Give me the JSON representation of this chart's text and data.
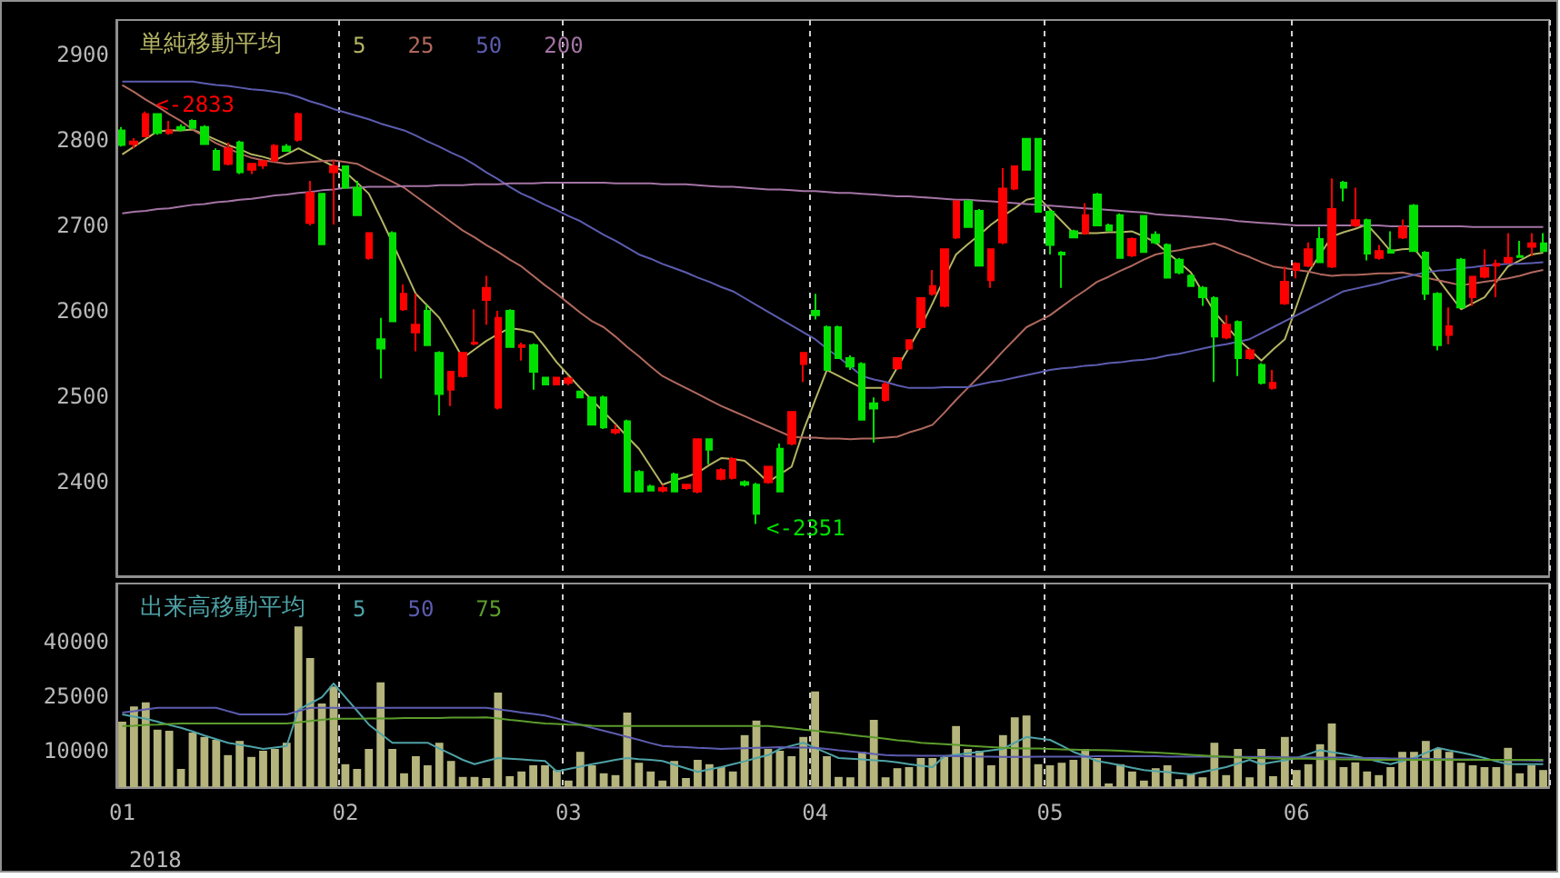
{
  "chart_data": [
    {
      "type": "candlestick",
      "legend_title": "単純移動平均",
      "legend": "top left",
      "grid": "x",
      "tick_labels": "y",
      "ylim": [
        2290,
        2940
      ],
      "yticks": [
        2400,
        2500,
        2600,
        2700,
        2800,
        2900
      ],
      "annotations": [
        "<-2833",
        "<-2351"
      ],
      "categories": [
        "01",
        null,
        null,
        null,
        null,
        null,
        null,
        null,
        null,
        null,
        null,
        null,
        null,
        null,
        null,
        null,
        null,
        null,
        null,
        "02",
        null,
        null,
        null,
        null,
        null,
        null,
        null,
        null,
        null,
        null,
        null,
        null,
        null,
        null,
        null,
        null,
        null,
        null,
        "03",
        null,
        null,
        null,
        null,
        null,
        null,
        null,
        null,
        null,
        null,
        null,
        null,
        null,
        null,
        null,
        null,
        null,
        null,
        null,
        null,
        "04",
        null,
        null,
        null,
        null,
        null,
        null,
        null,
        null,
        null,
        null,
        null,
        null,
        null,
        null,
        null,
        null,
        null,
        null,
        null,
        "05",
        null,
        null,
        null,
        null,
        null,
        null,
        null,
        null,
        null,
        null,
        null,
        null,
        null,
        null,
        null,
        null,
        null,
        null,
        null,
        null,
        "06",
        null,
        null,
        null,
        null,
        null,
        null,
        null,
        null,
        null,
        null,
        null,
        null,
        null,
        null,
        null,
        null,
        null,
        null,
        null,
        null,
        null
      ],
      "series": [
        {
          "type": "line",
          "name": "5",
          "color": "#b4b464",
          "values": [
            2783,
            2792,
            2801,
            2810,
            2811,
            2811,
            2812,
            2806,
            2800,
            2794,
            2789,
            2783,
            2780,
            2776,
            2783,
            2790,
            2783,
            2776,
            2769,
            2762,
            2750,
            2737,
            2709,
            2680,
            2650,
            2620,
            2606,
            2592,
            2569,
            2545,
            2555,
            2565,
            2573,
            2580,
            2578,
            2575,
            2558,
            2540,
            2525,
            2510,
            2496,
            2482,
            2468,
            2453,
            2439,
            2418,
            2397,
            2402,
            2406,
            2411,
            2420,
            2428,
            2427,
            2425,
            2413,
            2400,
            2409,
            2418,
            2460,
            2496,
            2531,
            2524,
            2517,
            2510,
            2510,
            2510,
            2534,
            2557,
            2581,
            2609,
            2638,
            2666,
            2678,
            2689,
            2701,
            2711,
            2720,
            2730,
            2733,
            2719,
            2705,
            2691,
            2691,
            2691,
            2692,
            2692,
            2693,
            2687,
            2680,
            2668,
            2657,
            2645,
            2622,
            2599,
            2583,
            2567,
            2555,
            2542,
            2555,
            2567,
            2606,
            2645,
            2666,
            2687,
            2692,
            2696,
            2701,
            2686,
            2670,
            2672,
            2673,
            2656,
            2638,
            2620,
            2602,
            2609,
            2616,
            2634,
            2652,
            2659,
            2666,
            2668
          ]
        },
        {
          "type": "line",
          "name": "25",
          "color": "#b0685e",
          "values": [
            2864,
            2856,
            2847,
            2839,
            2830,
            2822,
            2812,
            2804,
            2796,
            2790,
            2784,
            2779,
            2776,
            2774,
            2772,
            2773,
            2774,
            2775,
            2776,
            2774,
            2772,
            2765,
            2758,
            2751,
            2744,
            2734,
            2724,
            2714,
            2704,
            2694,
            2686,
            2677,
            2669,
            2660,
            2652,
            2641,
            2630,
            2620,
            2609,
            2598,
            2588,
            2581,
            2570,
            2558,
            2547,
            2535,
            2524,
            2517,
            2510,
            2503,
            2496,
            2489,
            2483,
            2477,
            2471,
            2465,
            2459,
            2453,
            2452,
            2452,
            2451,
            2451,
            2450,
            2451,
            2451,
            2452,
            2453,
            2458,
            2462,
            2467,
            2481,
            2496,
            2510,
            2524,
            2538,
            2553,
            2567,
            2581,
            2588,
            2595,
            2605,
            2615,
            2624,
            2634,
            2640,
            2647,
            2653,
            2660,
            2666,
            2669,
            2671,
            2674,
            2676,
            2679,
            2674,
            2668,
            2663,
            2657,
            2652,
            2650,
            2648,
            2646,
            2643,
            2641,
            2642,
            2642,
            2643,
            2644,
            2644,
            2645,
            2642,
            2639,
            2636,
            2633,
            2630,
            2632,
            2634,
            2636,
            2638,
            2641,
            2645,
            2648
          ]
        },
        {
          "type": "line",
          "name": "50",
          "color": "#5c5cb0",
          "values": [
            2868,
            2868,
            2868,
            2868,
            2868,
            2868,
            2868,
            2866,
            2864,
            2863,
            2861,
            2859,
            2858,
            2856,
            2854,
            2850,
            2845,
            2841,
            2836,
            2832,
            2828,
            2824,
            2819,
            2815,
            2811,
            2805,
            2798,
            2792,
            2785,
            2779,
            2771,
            2762,
            2754,
            2745,
            2737,
            2731,
            2724,
            2718,
            2711,
            2705,
            2697,
            2689,
            2682,
            2674,
            2666,
            2661,
            2655,
            2650,
            2645,
            2639,
            2634,
            2628,
            2623,
            2615,
            2607,
            2599,
            2591,
            2583,
            2575,
            2567,
            2556,
            2546,
            2535,
            2524,
            2520,
            2517,
            2513,
            2510,
            2510,
            2510,
            2511,
            2511,
            2511,
            2514,
            2517,
            2519,
            2522,
            2525,
            2528,
            2531,
            2533,
            2534,
            2536,
            2537,
            2539,
            2540,
            2542,
            2543,
            2545,
            2548,
            2550,
            2553,
            2556,
            2559,
            2561,
            2564,
            2567,
            2574,
            2581,
            2588,
            2595,
            2602,
            2609,
            2616,
            2623,
            2626,
            2629,
            2632,
            2636,
            2639,
            2642,
            2645,
            2647,
            2648,
            2650,
            2651,
            2653,
            2654,
            2655,
            2655,
            2656,
            2657
          ]
        },
        {
          "type": "line",
          "name": "200",
          "color": "#a474a4",
          "values": [
            2714,
            2716,
            2717,
            2719,
            2720,
            2722,
            2724,
            2725,
            2727,
            2728,
            2730,
            2731,
            2733,
            2735,
            2736,
            2738,
            2739,
            2741,
            2742,
            2744,
            2744,
            2745,
            2745,
            2745,
            2746,
            2746,
            2746,
            2747,
            2747,
            2747,
            2748,
            2748,
            2748,
            2749,
            2749,
            2749,
            2750,
            2750,
            2750,
            2750,
            2750,
            2750,
            2749,
            2749,
            2749,
            2749,
            2748,
            2748,
            2748,
            2747,
            2746,
            2745,
            2745,
            2744,
            2743,
            2742,
            2742,
            2741,
            2740,
            2740,
            2739,
            2738,
            2738,
            2737,
            2736,
            2735,
            2734,
            2734,
            2733,
            2732,
            2731,
            2730,
            2730,
            2729,
            2728,
            2727,
            2726,
            2725,
            2724,
            2723,
            2722,
            2721,
            2720,
            2719,
            2718,
            2717,
            2716,
            2715,
            2713,
            2712,
            2711,
            2710,
            2709,
            2708,
            2707,
            2705,
            2704,
            2703,
            2702,
            2701,
            2700,
            2700,
            2700,
            2700,
            2700,
            2700,
            2700,
            2700,
            2699,
            2699,
            2699,
            2699,
            2699,
            2699,
            2699,
            2698,
            2698,
            2698,
            2698,
            2698,
            2698,
            2698
          ]
        },
        {
          "ohlc": [
            [
              2811,
              2815,
              2792,
              2794
            ],
            [
              2795,
              2802,
              2790,
              2798
            ],
            [
              2804,
              2833,
              2803,
              2830
            ],
            [
              2830,
              2831,
              2806,
              2808
            ],
            [
              2808,
              2822,
              2806,
              2811
            ],
            [
              2815,
              2818,
              2810,
              2812
            ],
            [
              2822,
              2824,
              2813,
              2814
            ],
            [
              2815,
              2817,
              2794,
              2795
            ],
            [
              2787,
              2790,
              2764,
              2765
            ],
            [
              2772,
              2797,
              2770,
              2790
            ],
            [
              2797,
              2799,
              2760,
              2762
            ],
            [
              2765,
              2772,
              2760,
              2772
            ],
            [
              2770,
              2776,
              2766,
              2775
            ],
            [
              2776,
              2795,
              2774,
              2793
            ],
            [
              2792,
              2795,
              2786,
              2787
            ],
            [
              2800,
              2832,
              2798,
              2830
            ],
            [
              2703,
              2752,
              2700,
              2738
            ],
            [
              2737,
              2738,
              2678,
              2678
            ],
            [
              2762,
              2776,
              2701,
              2769
            ],
            [
              2769,
              2770,
              2744,
              2744
            ],
            [
              2744,
              2752,
              2712,
              2712
            ],
            [
              2662,
              2691,
              2660,
              2691
            ],
            [
              2567,
              2592,
              2521,
              2556
            ],
            [
              2691,
              2693,
              2588,
              2588
            ],
            [
              2602,
              2631,
              2600,
              2620
            ],
            [
              2575,
              2620,
              2553,
              2584
            ],
            [
              2600,
              2607,
              2560,
              2560
            ],
            [
              2551,
              2553,
              2478,
              2503
            ],
            [
              2508,
              2529,
              2489,
              2529
            ],
            [
              2524,
              2551,
              2522,
              2551
            ],
            [
              2562,
              2602,
              2560,
              2563
            ],
            [
              2613,
              2641,
              2584,
              2627
            ],
            [
              2487,
              2600,
              2485,
              2592
            ],
            [
              2600,
              2602,
              2558,
              2558
            ],
            [
              2558,
              2563,
              2542,
              2560
            ],
            [
              2560,
              2562,
              2508,
              2529
            ],
            [
              2522,
              2523,
              2514,
              2514
            ],
            [
              2514,
              2522,
              2513,
              2522
            ],
            [
              2516,
              2524,
              2513,
              2521
            ],
            [
              2506,
              2507,
              2499,
              2499
            ],
            [
              2499,
              2500,
              2467,
              2467
            ],
            [
              2499,
              2501,
              2462,
              2464
            ],
            [
              2458,
              2467,
              2456,
              2461
            ],
            [
              2471,
              2473,
              2389,
              2389
            ],
            [
              2412,
              2414,
              2388,
              2389
            ],
            [
              2395,
              2397,
              2389,
              2390
            ],
            [
              2390,
              2397,
              2388,
              2393
            ],
            [
              2409,
              2411,
              2389,
              2389
            ],
            [
              2393,
              2397,
              2391,
              2397
            ],
            [
              2389,
              2451,
              2387,
              2450
            ],
            [
              2450,
              2451,
              2421,
              2438
            ],
            [
              2404,
              2416,
              2402,
              2414
            ],
            [
              2405,
              2429,
              2403,
              2427
            ],
            [
              2400,
              2402,
              2395,
              2397
            ],
            [
              2397,
              2399,
              2351,
              2363
            ],
            [
              2400,
              2418,
              2398,
              2418
            ],
            [
              2439,
              2445,
              2389,
              2389
            ],
            [
              2445,
              2482,
              2443,
              2482
            ],
            [
              2538,
              2551,
              2517,
              2551
            ],
            [
              2600,
              2620,
              2590,
              2595
            ],
            [
              2581,
              2583,
              2531,
              2531
            ],
            [
              2581,
              2583,
              2545,
              2545
            ],
            [
              2545,
              2548,
              2531,
              2535
            ],
            [
              2538,
              2540,
              2473,
              2473
            ],
            [
              2492,
              2499,
              2446,
              2486
            ],
            [
              2496,
              2517,
              2494,
              2514
            ],
            [
              2533,
              2545,
              2531,
              2545
            ],
            [
              2556,
              2567,
              2554,
              2566
            ],
            [
              2581,
              2615,
              2579,
              2615
            ],
            [
              2620,
              2648,
              2618,
              2629
            ],
            [
              2606,
              2672,
              2604,
              2672
            ],
            [
              2686,
              2728,
              2684,
              2728
            ],
            [
              2728,
              2730,
              2698,
              2698
            ],
            [
              2717,
              2719,
              2653,
              2653
            ],
            [
              2636,
              2672,
              2627,
              2672
            ],
            [
              2680,
              2767,
              2678,
              2743
            ],
            [
              2743,
              2769,
              2741,
              2769
            ],
            [
              2801,
              2802,
              2765,
              2765
            ],
            [
              2801,
              2802,
              2716,
              2716
            ],
            [
              2716,
              2718,
              2666,
              2677
            ],
            [
              2668,
              2670,
              2627,
              2666
            ],
            [
              2693,
              2695,
              2685,
              2686
            ],
            [
              2691,
              2726,
              2689,
              2712
            ],
            [
              2736,
              2738,
              2700,
              2700
            ],
            [
              2700,
              2702,
              2693,
              2694
            ],
            [
              2712,
              2714,
              2662,
              2662
            ],
            [
              2665,
              2686,
              2663,
              2684
            ],
            [
              2711,
              2712,
              2669,
              2669
            ],
            [
              2689,
              2693,
              2678,
              2680
            ],
            [
              2677,
              2679,
              2639,
              2639
            ],
            [
              2660,
              2662,
              2643,
              2645
            ],
            [
              2641,
              2643,
              2629,
              2629
            ],
            [
              2627,
              2629,
              2606,
              2616
            ],
            [
              2615,
              2617,
              2517,
              2570
            ],
            [
              2569,
              2595,
              2567,
              2584
            ],
            [
              2587,
              2589,
              2524,
              2545
            ],
            [
              2545,
              2556,
              2543,
              2554
            ],
            [
              2537,
              2539,
              2514,
              2516
            ],
            [
              2510,
              2531,
              2508,
              2516
            ],
            [
              2609,
              2652,
              2607,
              2634
            ],
            [
              2648,
              2657,
              2638,
              2655
            ],
            [
              2653,
              2680,
              2651,
              2672
            ],
            [
              2684,
              2698,
              2657,
              2657
            ],
            [
              2652,
              2755,
              2650,
              2719
            ],
            [
              2750,
              2752,
              2728,
              2744
            ],
            [
              2700,
              2744,
              2698,
              2706
            ],
            [
              2706,
              2708,
              2659,
              2667
            ],
            [
              2662,
              2677,
              2660,
              2670
            ],
            [
              2671,
              2693,
              2667,
              2668
            ],
            [
              2686,
              2707,
              2684,
              2698
            ],
            [
              2723,
              2725,
              2670,
              2670
            ],
            [
              2668,
              2670,
              2613,
              2620
            ],
            [
              2620,
              2622,
              2554,
              2560
            ],
            [
              2572,
              2604,
              2561,
              2582
            ],
            [
              2660,
              2662,
              2604,
              2604
            ],
            [
              2616,
              2640,
              2606,
              2640
            ],
            [
              2640,
              2672,
              2638,
              2650
            ],
            [
              2653,
              2660,
              2616,
              2655
            ],
            [
              2657,
              2691,
              2655,
              2662
            ],
            [
              2664,
              2682,
              2662,
              2663
            ],
            [
              2675,
              2691,
              2664,
              2679
            ],
            [
              2679,
              2691,
              2670,
              2670
            ]
          ],
          "colors": [
            "#00e000",
            "#ff0000",
            "#ff0000",
            "#00e000",
            "#ff0000",
            "#00e000",
            "#00e000",
            "#00e000",
            "#00e000",
            "#ff0000",
            "#00e000",
            "#ff0000",
            "#ff0000",
            "#ff0000",
            "#00e000",
            "#ff0000",
            "#ff0000",
            "#00e000",
            "#ff0000",
            "#00e000",
            "#00e000",
            "#ff0000",
            "#00e000",
            "#00e000",
            "#ff0000",
            "#ff0000",
            "#00e000",
            "#00e000",
            "#ff0000",
            "#ff0000",
            "#ff0000",
            "#ff0000",
            "#ff0000",
            "#00e000",
            "#ff0000",
            "#00e000",
            "#00e000",
            "#ff0000",
            "#ff0000",
            "#00e000",
            "#00e000",
            "#00e000",
            "#ff0000",
            "#00e000",
            "#00e000",
            "#00e000",
            "#ff0000",
            "#00e000",
            "#ff0000",
            "#ff0000",
            "#00e000",
            "#ff0000",
            "#ff0000",
            "#00e000",
            "#00e000",
            "#ff0000",
            "#00e000",
            "#ff0000",
            "#ff0000",
            "#00e000",
            "#00e000",
            "#00e000",
            "#00e000",
            "#00e000",
            "#00e000",
            "#ff0000",
            "#ff0000",
            "#ff0000",
            "#ff0000",
            "#ff0000",
            "#ff0000",
            "#ff0000",
            "#00e000",
            "#00e000",
            "#ff0000",
            "#ff0000",
            "#ff0000",
            "#00e000",
            "#00e000",
            "#00e000",
            "#00e000",
            "#00e000",
            "#ff0000",
            "#00e000",
            "#00e000",
            "#00e000",
            "#ff0000",
            "#00e000",
            "#00e000",
            "#00e000",
            "#00e000",
            "#00e000",
            "#00e000",
            "#00e000",
            "#ff0000",
            "#00e000",
            "#ff0000",
            "#00e000",
            "#ff0000",
            "#ff0000",
            "#ff0000",
            "#ff0000",
            "#00e000",
            "#ff0000",
            "#00e000",
            "#ff0000",
            "#00e000",
            "#ff0000",
            "#00e000",
            "#ff0000",
            "#00e000",
            "#00e000",
            "#00e000",
            "#ff0000",
            "#00e000",
            "#ff0000",
            "#ff0000",
            "#ff0000",
            "#ff0000",
            "#00e000",
            "#ff0000",
            "#00e000"
          ]
        }
      ]
    },
    {
      "type": "bar",
      "legend_title": "出来高移動平均",
      "legend": "top left",
      "grid": "x",
      "xlabel": "2018",
      "ylim": [
        0,
        56000
      ],
      "yticks": [
        10000,
        25000,
        40000
      ],
      "categories": [
        "01",
        null,
        null,
        null,
        null,
        null,
        null,
        null,
        null,
        null,
        null,
        null,
        null,
        null,
        null,
        null,
        null,
        null,
        null,
        "02",
        null,
        null,
        null,
        null,
        null,
        null,
        null,
        null,
        null,
        null,
        null,
        null,
        null,
        null,
        null,
        null,
        null,
        null,
        "03",
        null,
        null,
        null,
        null,
        null,
        null,
        null,
        null,
        null,
        null,
        null,
        null,
        null,
        null,
        null,
        null,
        null,
        null,
        null,
        null,
        "04",
        null,
        null,
        null,
        null,
        null,
        null,
        null,
        null,
        null,
        null,
        null,
        null,
        null,
        null,
        null,
        null,
        null,
        null,
        null,
        "05",
        null,
        null,
        null,
        null,
        null,
        null,
        null,
        null,
        null,
        null,
        null,
        null,
        null,
        null,
        null,
        null,
        null,
        null,
        null,
        null,
        "06",
        null,
        null,
        null,
        null,
        null,
        null,
        null,
        null,
        null,
        null,
        null,
        null,
        null,
        null,
        null,
        null,
        null,
        null,
        null,
        null,
        null
      ],
      "series": [
        {
          "color": "#b4b47c",
          "values": [
            18000,
            22200,
            23300,
            15800,
            15500,
            5000,
            15000,
            13800,
            13000,
            8800,
            12700,
            8300,
            10000,
            10500,
            12200,
            44200,
            35500,
            23000,
            27700,
            6300,
            5000,
            10500,
            28800,
            10500,
            3800,
            8500,
            6000,
            12200,
            7200,
            2800,
            2800,
            2500,
            26000,
            3000,
            4300,
            6000,
            6000,
            4700,
            1800,
            9700,
            6000,
            3800,
            3300,
            20500,
            6700,
            4300,
            1800,
            7200,
            2500,
            7500,
            6300,
            5500,
            4300,
            14300,
            18300,
            10500,
            10000,
            8500,
            13800,
            26300,
            8500,
            2800,
            2700,
            9700,
            18500,
            2700,
            5200,
            5500,
            8000,
            8000,
            8300,
            16800,
            10500,
            10000,
            6000,
            14300,
            19200,
            19700,
            6300,
            6000,
            6700,
            7500,
            10500,
            8000,
            1000,
            6300,
            4300,
            1800,
            5200,
            6000,
            2200,
            3500,
            2700,
            12200,
            3300,
            10500,
            2700,
            10500,
            3000,
            13800,
            4700,
            6300,
            11800,
            17500,
            5500,
            6800,
            4300,
            3300,
            5500,
            9700,
            9700,
            12700,
            10500,
            9700,
            6700,
            6000,
            5500,
            5500,
            10800,
            3800,
            6000,
            4700
          ]
        },
        {
          "type": "line",
          "name": "5",
          "color": "#4ea2a6",
          "values": [
            20000,
            19400,
            18800,
            18000,
            17100,
            16300,
            15300,
            14200,
            13200,
            12200,
            11600,
            11100,
            10500,
            10900,
            11300,
            21300,
            23000,
            24700,
            28500,
            24700,
            21000,
            17200,
            14700,
            12200,
            12200,
            12200,
            12200,
            10600,
            9100,
            7500,
            6300,
            7200,
            8000,
            7800,
            7600,
            7400,
            7200,
            4300,
            5000,
            5600,
            6300,
            6900,
            7500,
            8000,
            7700,
            7500,
            7200,
            6200,
            5200,
            4200,
            4900,
            5500,
            6300,
            7100,
            8000,
            8800,
            10500,
            11400,
            12200,
            10800,
            9400,
            8000,
            7800,
            7600,
            7400,
            7200,
            6800,
            6300,
            5900,
            5500,
            8500,
            8900,
            9300,
            9700,
            10100,
            10500,
            12200,
            13800,
            13400,
            13000,
            11400,
            9700,
            8500,
            7200,
            6600,
            6000,
            5300,
            4700,
            4400,
            4100,
            3800,
            3500,
            4200,
            4800,
            5500,
            6500,
            7500,
            6300,
            6900,
            7400,
            8000,
            9100,
            10200,
            9600,
            9100,
            8500,
            7800,
            7000,
            6300,
            7200,
            8000,
            9400,
            10800,
            10100,
            9500,
            8800,
            8000,
            7100,
            6300,
            6300,
            6300,
            6300
          ]
        },
        {
          "type": "line",
          "name": "50",
          "color": "#5c5cb0",
          "values": [
            20500,
            20900,
            21400,
            21800,
            21800,
            21800,
            21800,
            21800,
            21800,
            20900,
            20000,
            20000,
            20000,
            20000,
            20000,
            20900,
            21800,
            21800,
            21800,
            21800,
            21800,
            21800,
            21800,
            21800,
            21800,
            21800,
            21800,
            21800,
            21800,
            21800,
            21800,
            21800,
            21400,
            21000,
            20500,
            20100,
            19700,
            18900,
            18000,
            17200,
            16300,
            15500,
            14700,
            13800,
            13000,
            12100,
            11300,
            11100,
            11000,
            10800,
            10700,
            10500,
            10600,
            10700,
            10800,
            10900,
            11000,
            10900,
            10900,
            10800,
            10500,
            10100,
            9800,
            9500,
            9100,
            8800,
            8700,
            8700,
            8600,
            8600,
            8600,
            8500,
            8500,
            8400,
            8400,
            8300,
            8300,
            8300,
            8400,
            8400,
            8400,
            8400,
            8400,
            8500,
            8500,
            8500,
            8500,
            8500,
            8500,
            8400,
            8400,
            8400,
            8400,
            8400,
            8300,
            8300,
            8300,
            8300,
            8300,
            8200,
            8200,
            8200,
            8100,
            8100,
            8100,
            8000,
            8000,
            8000,
            7900,
            7900,
            7800,
            7800,
            7700,
            7700,
            7600,
            7600,
            7500,
            7500,
            7400,
            7400,
            7300,
            7200
          ]
        },
        {
          "type": "line",
          "name": "75",
          "color": "#5c9c2c",
          "values": [
            16800,
            16900,
            17100,
            17200,
            17400,
            17500,
            17500,
            17500,
            17500,
            17500,
            17500,
            17500,
            17500,
            17500,
            17500,
            17800,
            18200,
            18500,
            18800,
            18800,
            18800,
            18900,
            18900,
            18900,
            19000,
            19000,
            19000,
            19000,
            19100,
            19100,
            19100,
            19200,
            18900,
            18500,
            18200,
            17800,
            17500,
            17400,
            17200,
            17100,
            16900,
            16800,
            16800,
            16800,
            16800,
            16800,
            16800,
            16800,
            16800,
            16800,
            16800,
            16800,
            16800,
            16800,
            16800,
            16800,
            16500,
            16200,
            15800,
            15500,
            15100,
            14800,
            14400,
            14000,
            13700,
            13300,
            12900,
            12600,
            12200,
            12000,
            11800,
            11600,
            11400,
            11200,
            11000,
            10800,
            10700,
            10600,
            10600,
            10500,
            10400,
            10300,
            10200,
            10200,
            10100,
            10000,
            9800,
            9600,
            9500,
            9300,
            9100,
            8900,
            8700,
            8500,
            8400,
            8200,
            8000,
            8000,
            7900,
            7900,
            7800,
            7800,
            7700,
            7700,
            7600,
            7600,
            7500,
            7500,
            7500,
            7500,
            7500,
            7500,
            7500,
            7500,
            7500,
            7500,
            7500,
            7500,
            7500,
            7500,
            7500,
            7500
          ]
        }
      ]
    }
  ]
}
